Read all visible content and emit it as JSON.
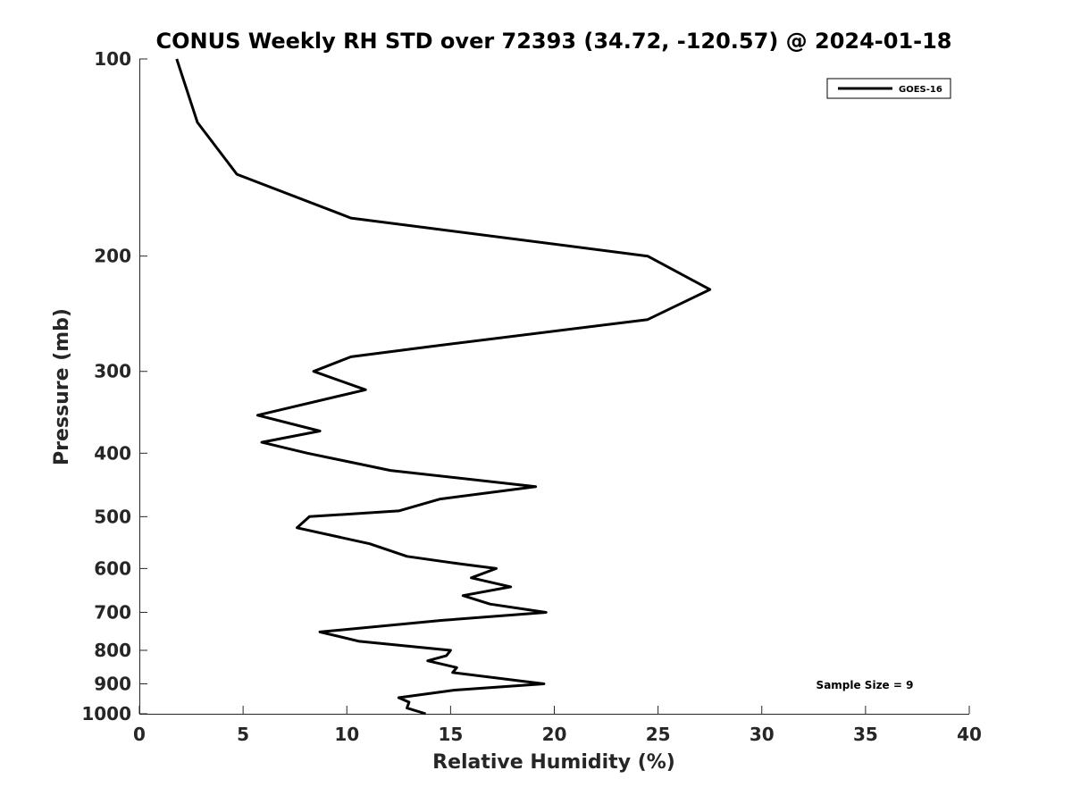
{
  "chart_data": {
    "type": "line",
    "title": "CONUS Weekly RH STD over 72393 (34.72, -120.57) @ 2024-01-18",
    "xlabel": "Relative Humidity (%)",
    "ylabel": "Pressure (mb)",
    "xlim": [
      0,
      40
    ],
    "ylim": [
      100,
      1000
    ],
    "y_scale": "log",
    "y_direction": "reversed",
    "x_ticks": [
      "0",
      "5",
      "10",
      "15",
      "20",
      "25",
      "30",
      "35",
      "40"
    ],
    "y_ticks": [
      "100",
      "200",
      "300",
      "400",
      "500",
      "600",
      "700",
      "800",
      "900",
      "1000"
    ],
    "legend_position": "top-right",
    "annotation": "Sample Size = 9",
    "series": [
      {
        "name": "GOES-16",
        "color": "#000000",
        "points": [
          [
            1.8,
            100
          ],
          [
            2.8,
            125
          ],
          [
            4.7,
            150
          ],
          [
            10.2,
            175
          ],
          [
            24.5,
            200
          ],
          [
            27.5,
            225
          ],
          [
            24.5,
            250
          ],
          [
            14.0,
            275
          ],
          [
            10.2,
            285
          ],
          [
            8.4,
            300
          ],
          [
            10.9,
            320
          ],
          [
            5.7,
            350
          ],
          [
            8.7,
            370
          ],
          [
            5.9,
            385
          ],
          [
            8.1,
            400
          ],
          [
            12.1,
            425
          ],
          [
            19.1,
            450
          ],
          [
            14.5,
            470
          ],
          [
            12.5,
            490
          ],
          [
            8.2,
            500
          ],
          [
            7.6,
            520
          ],
          [
            11.1,
            550
          ],
          [
            12.9,
            575
          ],
          [
            15.4,
            590
          ],
          [
            17.2,
            600
          ],
          [
            16.0,
            620
          ],
          [
            17.9,
            640
          ],
          [
            15.6,
            660
          ],
          [
            16.9,
            680
          ],
          [
            19.6,
            700
          ],
          [
            14.6,
            720
          ],
          [
            8.7,
            750
          ],
          [
            10.6,
            775
          ],
          [
            15.0,
            800
          ],
          [
            14.8,
            815
          ],
          [
            13.9,
            830
          ],
          [
            15.3,
            850
          ],
          [
            15.1,
            865
          ],
          [
            19.5,
            900
          ],
          [
            15.2,
            920
          ],
          [
            12.5,
            945
          ],
          [
            13.0,
            960
          ],
          [
            12.9,
            980
          ],
          [
            13.8,
            1000
          ]
        ]
      }
    ]
  }
}
